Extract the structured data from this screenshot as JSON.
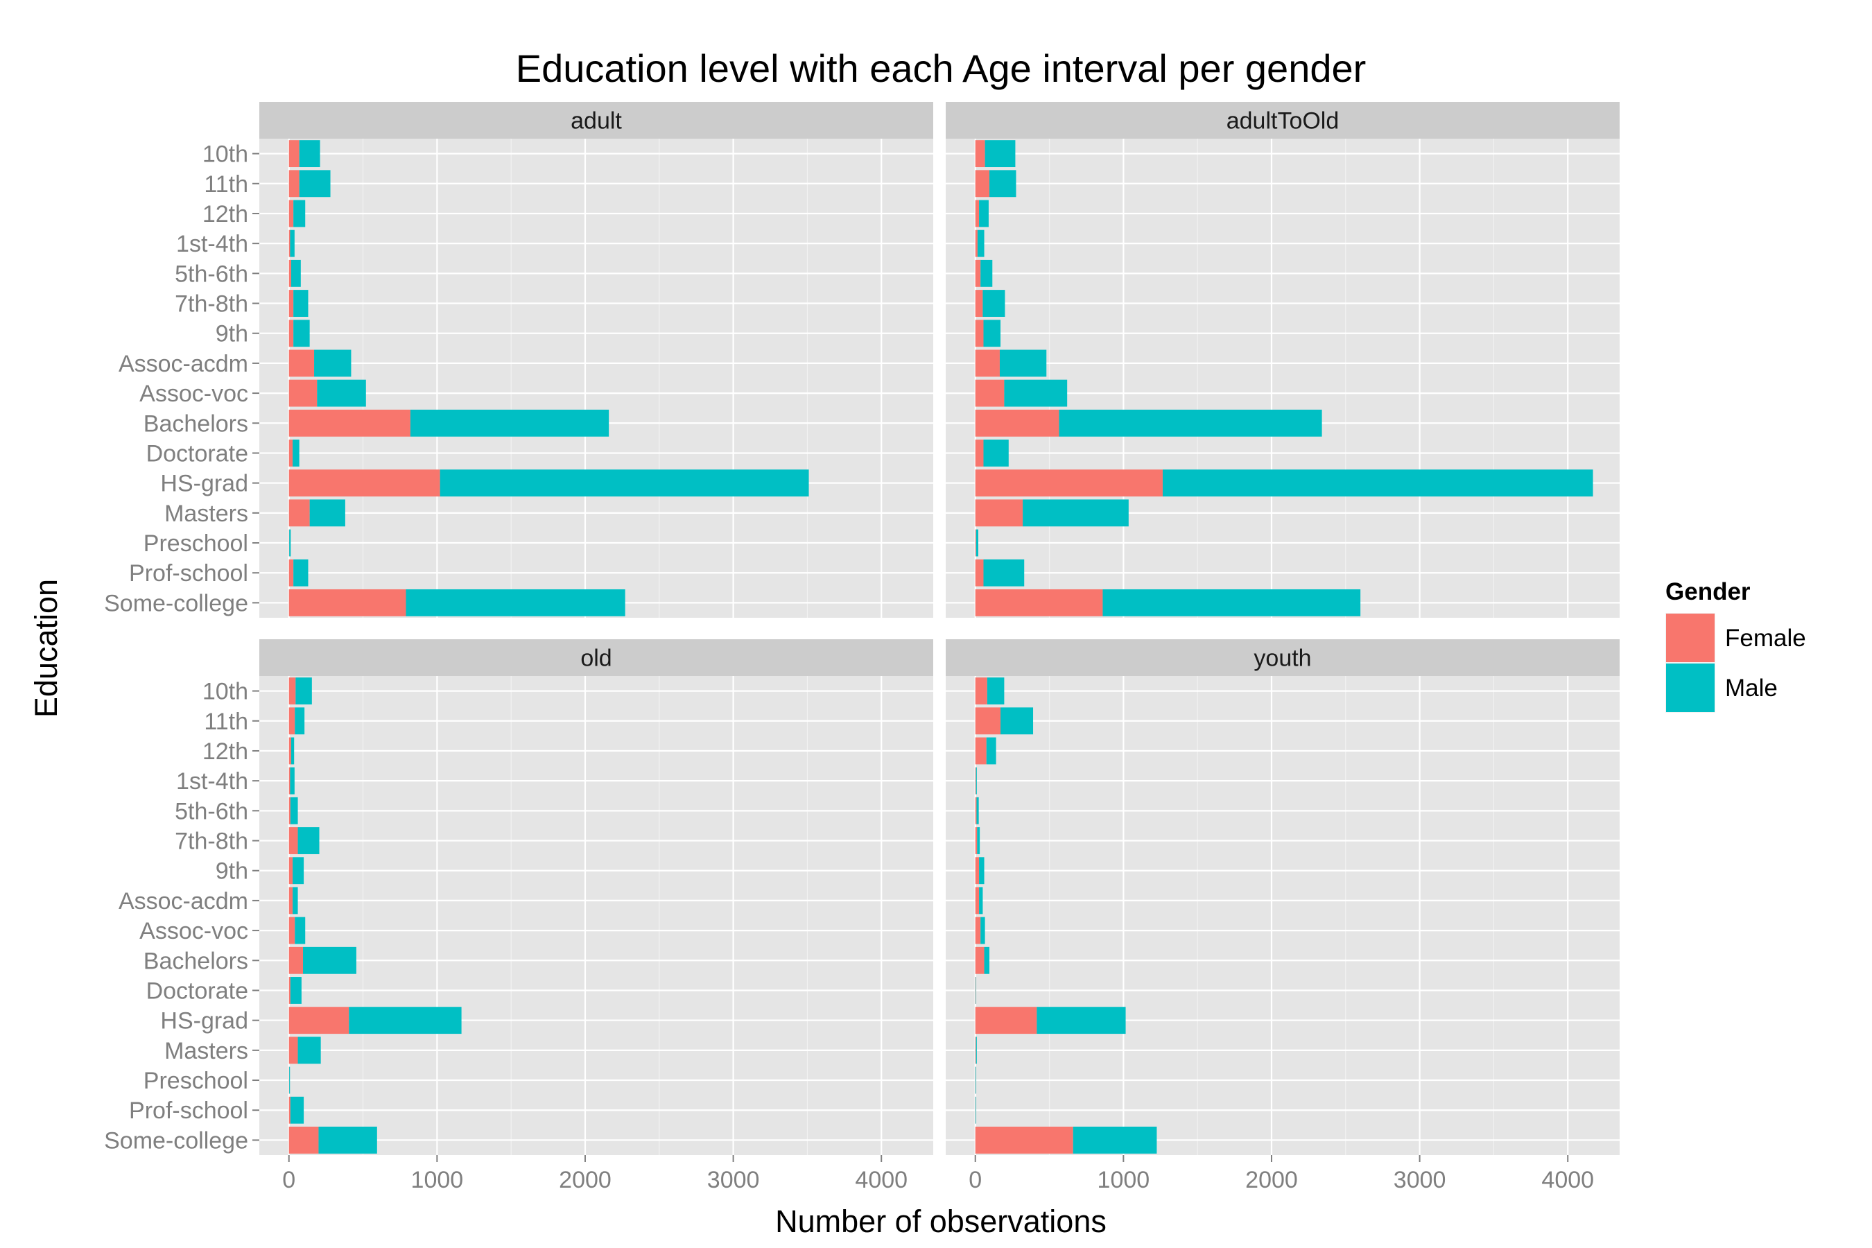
{
  "chart_data": {
    "type": "bar",
    "orientation": "horizontal",
    "stacked": true,
    "title": "Education level with each Age interval per gender",
    "xlabel": "Number of observations",
    "ylabel": "Education",
    "xlim": [
      -200,
      4350
    ],
    "x_ticks": [
      0,
      1000,
      2000,
      3000,
      4000
    ],
    "x_tick_labels": [
      "0",
      "1000",
      "2000",
      "3000",
      "4000"
    ],
    "categories": [
      "Some-college",
      "Prof-school",
      "Preschool",
      "Masters",
      "HS-grad",
      "Doctorate",
      "Bachelors",
      "Assoc-voc",
      "Assoc-acdm",
      "9th",
      "7th-8th",
      "5th-6th",
      "1st-4th",
      "12th",
      "11th",
      "10th"
    ],
    "grid": true,
    "legend": {
      "title": "Gender",
      "position": "right",
      "entries": [
        {
          "name": "Female",
          "color": "#F8766D"
        },
        {
          "name": "Male",
          "color": "#00BFC4"
        }
      ]
    },
    "panels": [
      {
        "label": "adult",
        "series": [
          {
            "name": "Female",
            "values": [
              790,
              30,
              2,
              140,
              1020,
              25,
              820,
              190,
              170,
              30,
              30,
              15,
              8,
              30,
              70,
              70
            ]
          },
          {
            "name": "Male",
            "values": [
              1480,
              100,
              10,
              240,
              2490,
              45,
              1340,
              330,
              250,
              110,
              100,
              65,
              30,
              80,
              210,
              140
            ]
          }
        ]
      },
      {
        "label": "adultToOld",
        "series": [
          {
            "name": "Female",
            "values": [
              860,
              55,
              5,
              320,
              1265,
              55,
              565,
              195,
              165,
              55,
              50,
              35,
              15,
              25,
              95,
              65
            ]
          },
          {
            "name": "Male",
            "values": [
              1740,
              275,
              15,
              715,
              2905,
              170,
              1775,
              425,
              315,
              115,
              150,
              80,
              45,
              65,
              180,
              205
            ]
          }
        ]
      },
      {
        "label": "old",
        "series": [
          {
            "name": "Female",
            "values": [
              200,
              10,
              2,
              60,
              405,
              10,
              95,
              40,
              25,
              25,
              60,
              10,
              8,
              15,
              40,
              45
            ]
          },
          {
            "name": "Male",
            "values": [
              395,
              90,
              5,
              155,
              760,
              75,
              360,
              70,
              35,
              75,
              145,
              50,
              30,
              20,
              65,
              110
            ]
          }
        ]
      },
      {
        "label": "youth",
        "series": [
          {
            "name": "Female",
            "values": [
              660,
              2,
              2,
              4,
              415,
              3,
              60,
              35,
              25,
              25,
              12,
              8,
              4,
              75,
              170,
              80
            ]
          },
          {
            "name": "Male",
            "values": [
              565,
              4,
              4,
              6,
              600,
              3,
              35,
              30,
              25,
              35,
              18,
              15,
              6,
              65,
              220,
              115
            ]
          }
        ]
      }
    ]
  }
}
